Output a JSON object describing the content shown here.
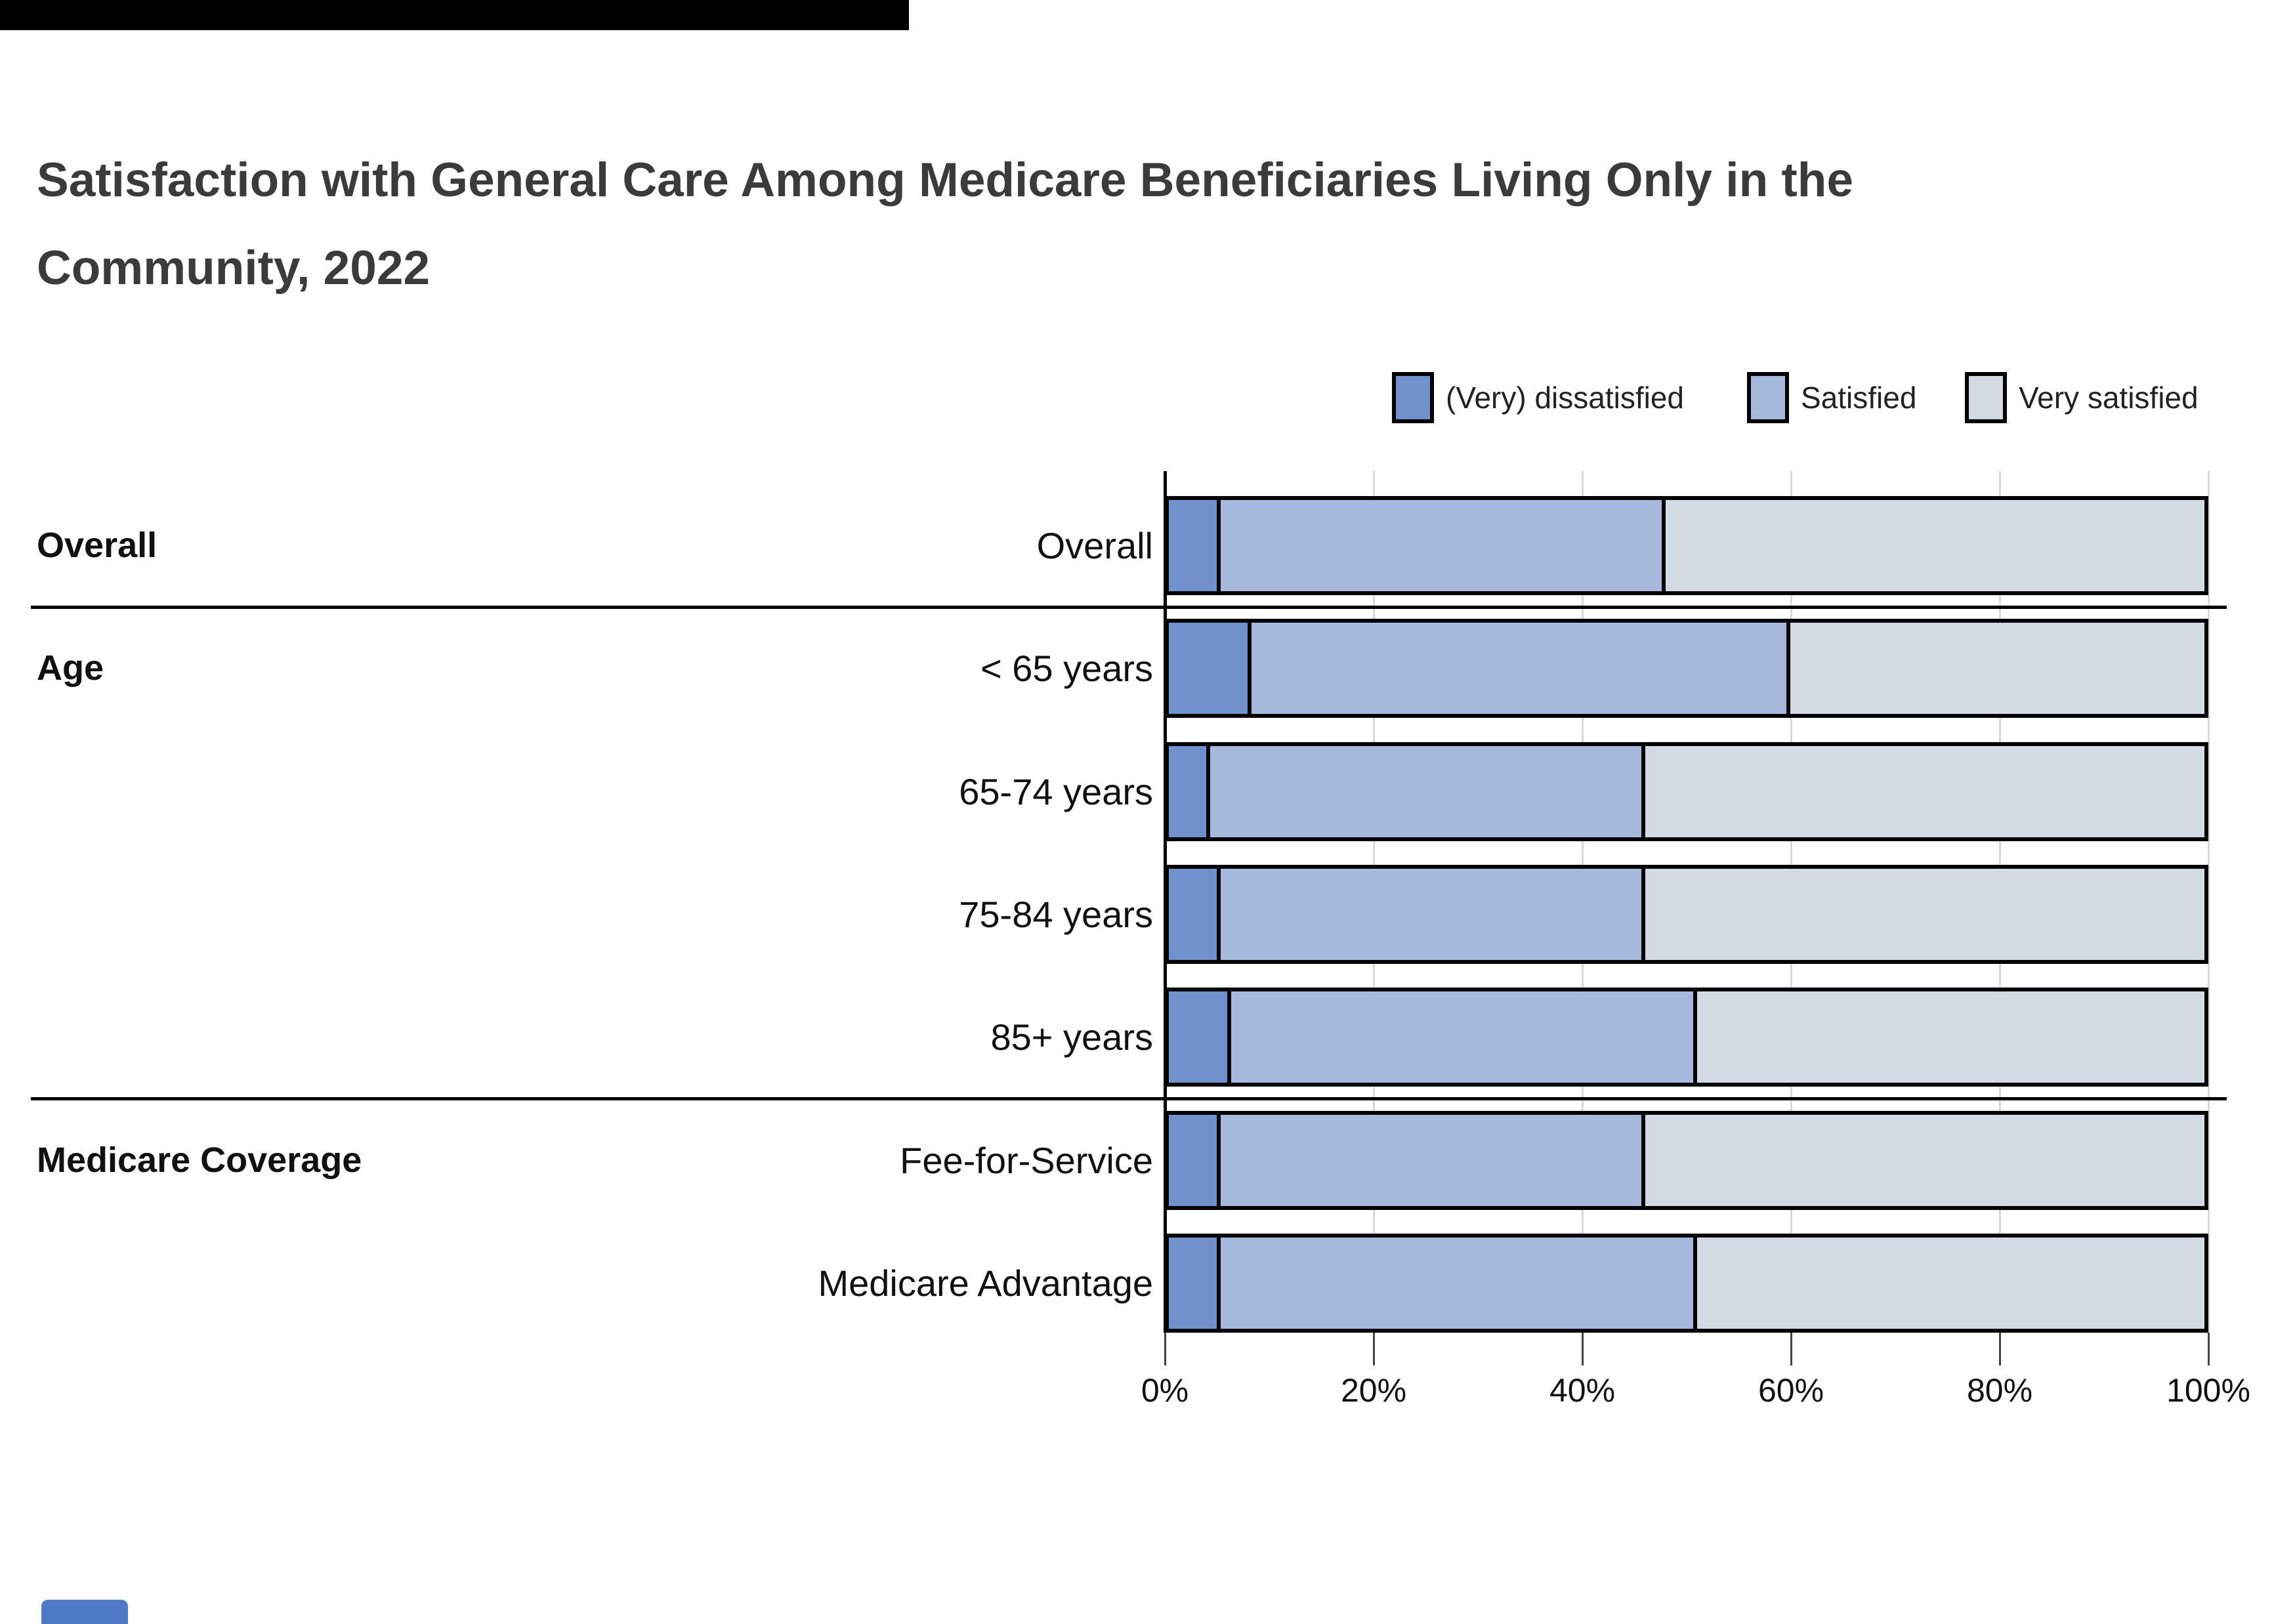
{
  "page": {
    "background": "#ffffff"
  },
  "decor": {
    "top_bar_color": "#000000",
    "bottom_patch_color": "#4d79c5"
  },
  "header": {
    "title_lines": [
      "Satisfaction with General Care Among Medicare Beneficiaries Living Only in the",
      "Community, 2022"
    ],
    "title_color": "#3b3b3b"
  },
  "legend": {
    "position": "top-right",
    "items": [
      {
        "label": "(Very) dissatisfied",
        "color": "#7191cd"
      },
      {
        "label": "Satisfied",
        "color": "#a6b9dd"
      },
      {
        "label": "Very satisfied",
        "color": "#d4dae4"
      }
    ]
  },
  "chart_data": {
    "type": "bar",
    "orientation": "horizontal",
    "stacked": true,
    "title": "Satisfaction with General Care Among Medicare Beneficiaries Living Only in the Community, 2022",
    "categories": [
      "Overall",
      "< 65 years",
      "65-74 years",
      "75-84 years",
      "85+ years",
      "Fee-for-Service",
      "Medicare Advantage"
    ],
    "groups": [
      {
        "label": "Overall",
        "rows": [
          0
        ]
      },
      {
        "label": "Age",
        "rows": [
          1,
          2,
          3,
          4
        ]
      },
      {
        "label": "Medicare Coverage",
        "rows": [
          5,
          6
        ]
      }
    ],
    "series": [
      {
        "name": "(Very) dissatisfied",
        "values": [
          5,
          8,
          4,
          5,
          6,
          5,
          5
        ]
      },
      {
        "name": "Satisfied",
        "values": [
          43,
          52,
          42,
          41,
          45,
          41,
          46
        ]
      },
      {
        "name": "Very satisfied",
        "values": [
          52,
          40,
          54,
          54,
          49,
          54,
          49
        ]
      }
    ],
    "xlim": [
      0,
      100
    ],
    "x_tick_values": [
      0,
      20,
      40,
      60,
      80,
      100
    ],
    "x_ticks": [
      "0%",
      "20%",
      "40%",
      "60%",
      "80%",
      "100%"
    ],
    "grid": true,
    "legend_position": "top-right"
  }
}
